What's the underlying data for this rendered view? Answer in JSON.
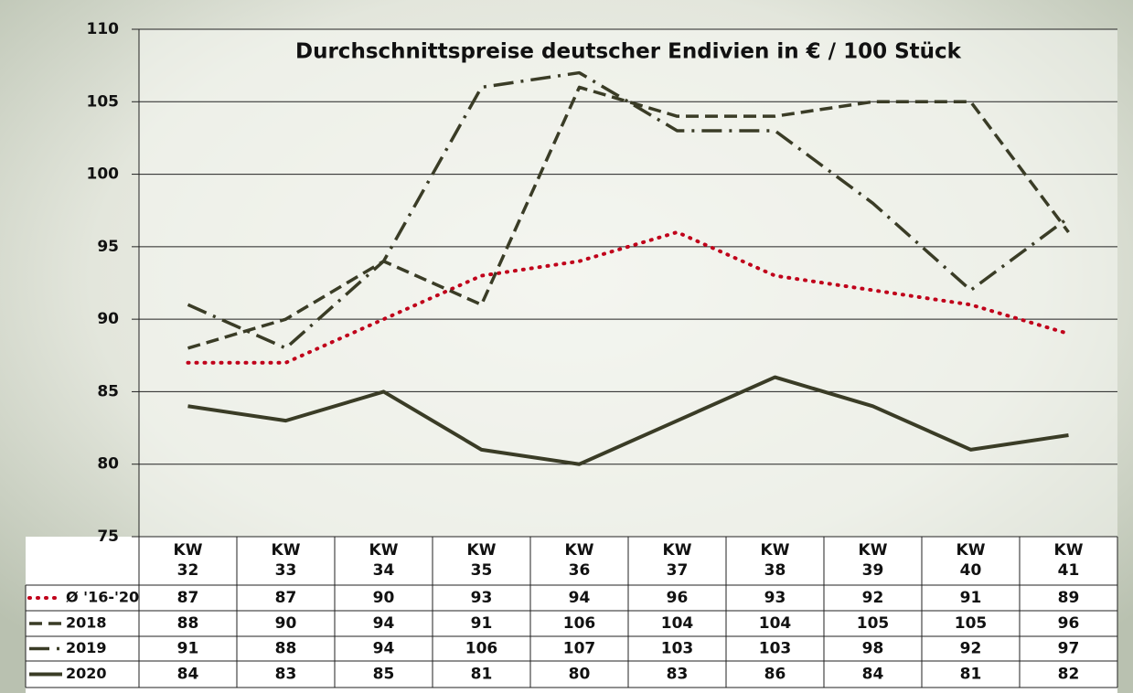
{
  "chart_data": {
    "type": "line",
    "title": "Durchschnittspreise deutscher Endivien in € / 100 Stück",
    "categories": [
      "KW 32",
      "KW 33",
      "KW 34",
      "KW 35",
      "KW 36",
      "KW 37",
      "KW 38",
      "KW 39",
      "KW 40",
      "KW 41"
    ],
    "series": [
      {
        "name": "Ø '16-'20",
        "color": "#c0001a",
        "style": "dotted",
        "values": [
          87,
          87,
          90,
          93,
          94,
          96,
          93,
          92,
          91,
          89
        ]
      },
      {
        "name": "2018",
        "color": "#3a3c26",
        "style": "dashed",
        "values": [
          88,
          90,
          94,
          91,
          106,
          104,
          104,
          105,
          105,
          96
        ]
      },
      {
        "name": "2019",
        "color": "#3a3c26",
        "style": "dashdot",
        "values": [
          91,
          88,
          94,
          106,
          107,
          103,
          103,
          98,
          92,
          97
        ]
      },
      {
        "name": "2020",
        "color": "#3a3c26",
        "style": "solid",
        "values": [
          84,
          83,
          85,
          81,
          80,
          83,
          86,
          84,
          81,
          82
        ]
      }
    ],
    "ylim": [
      75,
      110
    ],
    "yticks": [
      75,
      80,
      85,
      90,
      95,
      100,
      105,
      110
    ],
    "grid": true
  }
}
